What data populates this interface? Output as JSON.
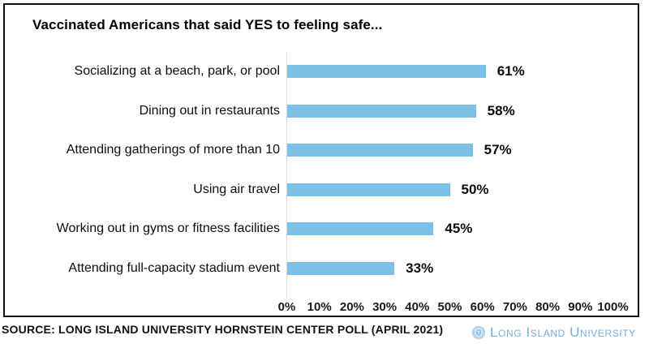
{
  "chart_data": {
    "type": "bar",
    "orientation": "horizontal",
    "title": "Vaccinated Americans that said YES to feeling safe...",
    "categories": [
      "Socializing at a beach, park, or pool",
      "Dining out in restaurants",
      "Attending gatherings of more than 10",
      "Using air travel",
      "Working out in gyms or fitness facilities",
      "Attending full-capacity stadium event"
    ],
    "values": [
      61,
      58,
      57,
      50,
      45,
      33
    ],
    "value_labels": [
      "61%",
      "58%",
      "57%",
      "50%",
      "45%",
      "33%"
    ],
    "x_ticks": [
      "0%",
      "10%",
      "20%",
      "30%",
      "40%",
      "50%",
      "60%",
      "70%",
      "80%",
      "90%",
      "100%"
    ],
    "x_tick_values": [
      0,
      10,
      20,
      30,
      40,
      50,
      60,
      70,
      80,
      90,
      100
    ],
    "xlim": [
      0,
      100
    ],
    "xlabel": "",
    "ylabel": "",
    "grid": false,
    "legend": false,
    "bar_color": "#7cc0e8",
    "axis_line_color": "#d9d9d9"
  },
  "footer": {
    "source": "SOURCE: LONG ISLAND UNIVERSITY HORNSTEIN CENTER POLL (APRIL 2021)",
    "logo_text": "Long Island University",
    "logo_color": "#74afdd",
    "logo_icon": "shield-in-circle"
  }
}
